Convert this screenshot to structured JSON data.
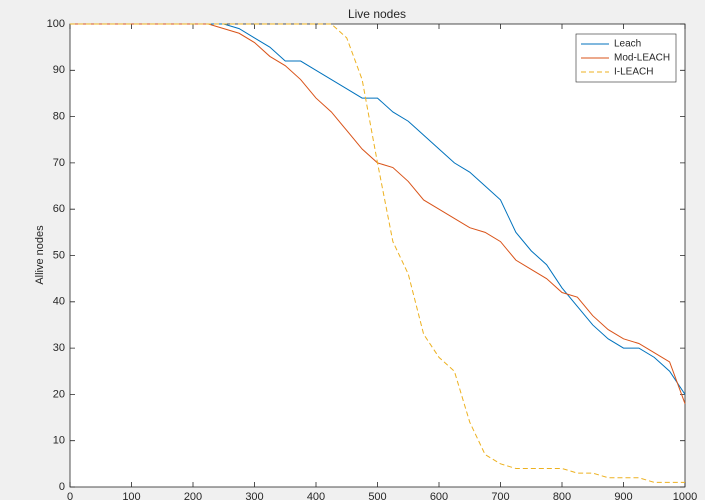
{
  "chart_data": {
    "type": "line",
    "title": "Live nodes",
    "ylabel": "Allive nodes",
    "x": [
      0,
      25,
      50,
      75,
      100,
      125,
      150,
      175,
      200,
      225,
      250,
      275,
      300,
      325,
      350,
      375,
      400,
      425,
      450,
      475,
      500,
      525,
      550,
      575,
      600,
      625,
      650,
      675,
      700,
      725,
      750,
      775,
      800,
      825,
      850,
      875,
      900,
      925,
      950,
      975,
      1000
    ],
    "series": [
      {
        "name": "Leach",
        "color": "#0072bd",
        "dashed": false,
        "values": [
          100,
          100,
          100,
          100,
          100,
          100,
          100,
          100,
          100,
          100,
          100,
          99,
          97,
          95,
          92,
          92,
          90,
          88,
          86,
          84,
          84,
          81,
          79,
          76,
          73,
          70,
          68,
          65,
          62,
          55,
          51,
          48,
          43,
          39,
          35,
          32,
          30,
          30,
          28,
          25,
          20
        ]
      },
      {
        "name": "Mod-LEACH",
        "color": "#d95319",
        "dashed": false,
        "values": [
          100,
          100,
          100,
          100,
          100,
          100,
          100,
          100,
          100,
          100,
          99,
          98,
          96,
          93,
          91,
          88,
          84,
          81,
          77,
          73,
          70,
          69,
          66,
          62,
          60,
          58,
          56,
          55,
          53,
          49,
          47,
          45,
          42,
          41,
          37,
          34,
          32,
          31,
          29,
          27,
          18
        ]
      },
      {
        "name": "I-LEACH",
        "color": "#edb120",
        "dashed": true,
        "values": [
          100,
          100,
          100,
          100,
          100,
          100,
          100,
          100,
          100,
          100,
          100,
          100,
          100,
          100,
          100,
          100,
          100,
          100,
          97,
          88,
          70,
          53,
          46,
          33,
          28,
          25,
          14,
          7,
          5,
          4,
          4,
          4,
          4,
          3,
          3,
          2,
          2,
          2,
          1,
          1,
          1
        ]
      }
    ],
    "xlim": [
      0,
      1000
    ],
    "xticks": [
      0,
      100,
      200,
      300,
      400,
      500,
      600,
      700,
      800,
      900,
      1000
    ],
    "ylim": [
      0,
      100
    ],
    "yticks": [
      0,
      10,
      20,
      30,
      40,
      50,
      60,
      70,
      80,
      90,
      100
    ],
    "legend": "northeast"
  }
}
